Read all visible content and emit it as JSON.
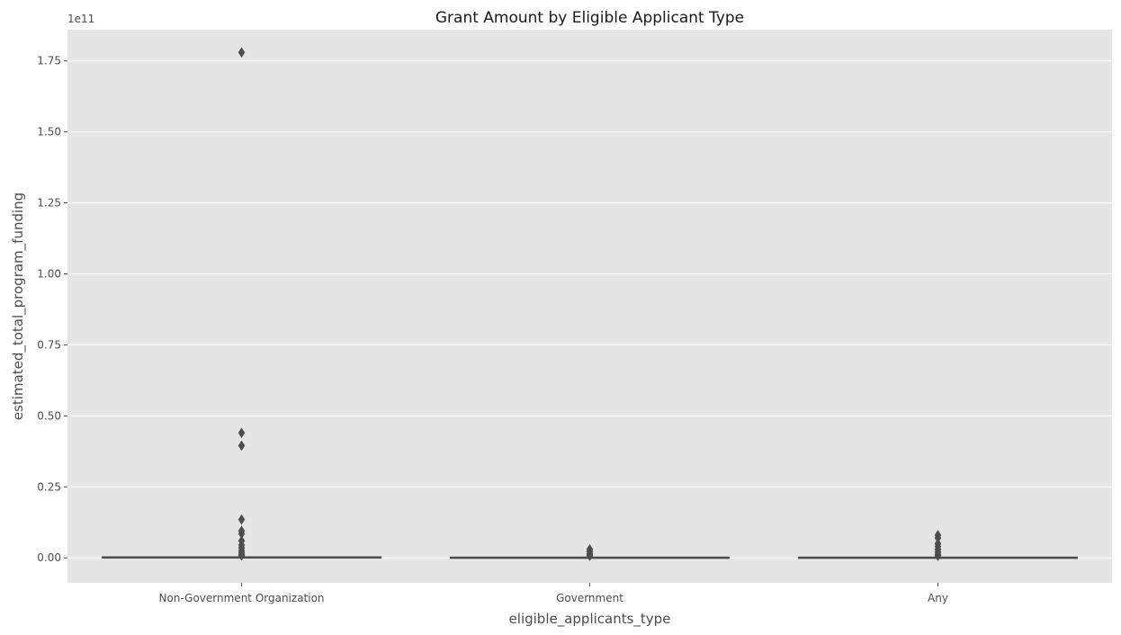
{
  "chart_data": {
    "type": "box",
    "title": "Grant Amount by Eligible Applicant Type",
    "xlabel": "eligible_applicants_type",
    "ylabel": "estimated_total_program_funding",
    "y_offset_label": "1e11",
    "y_scale": 100000000000,
    "ylim": [
      -0.088,
      1.86
    ],
    "y_ticks": [
      0.0,
      0.25,
      0.5,
      0.75,
      1.0,
      1.25,
      1.5,
      1.75
    ],
    "y_tick_labels": [
      "0.00",
      "0.25",
      "0.50",
      "0.75",
      "1.00",
      "1.25",
      "1.50",
      "1.75"
    ],
    "categories": [
      "Non-Government Organization",
      "Government",
      "Any"
    ],
    "grid": true,
    "background": "#e5e5e5",
    "grid_color": "#ffffff",
    "box_color": "#4d4d4d",
    "boxes": [
      {
        "category": "Non-Government Organization",
        "min": 0.0,
        "q1": 0.0,
        "median": 0.002,
        "q3": 0.003,
        "max": 0.006,
        "outliers": [
          1.78,
          0.44,
          0.395,
          0.135,
          0.095,
          0.085,
          0.06,
          0.045,
          0.035,
          0.025,
          0.018,
          0.012,
          0.008
        ]
      },
      {
        "category": "Government",
        "min": 0.0,
        "q1": 0.0,
        "median": 0.001,
        "q3": 0.002,
        "max": 0.004,
        "outliers": [
          0.03,
          0.022,
          0.015,
          0.01,
          0.007
        ]
      },
      {
        "category": "Any",
        "min": 0.0,
        "q1": 0.0,
        "median": 0.001,
        "q3": 0.002,
        "max": 0.004,
        "outliers": [
          0.08,
          0.07,
          0.05,
          0.04,
          0.03,
          0.02,
          0.012,
          0.007
        ]
      }
    ]
  }
}
